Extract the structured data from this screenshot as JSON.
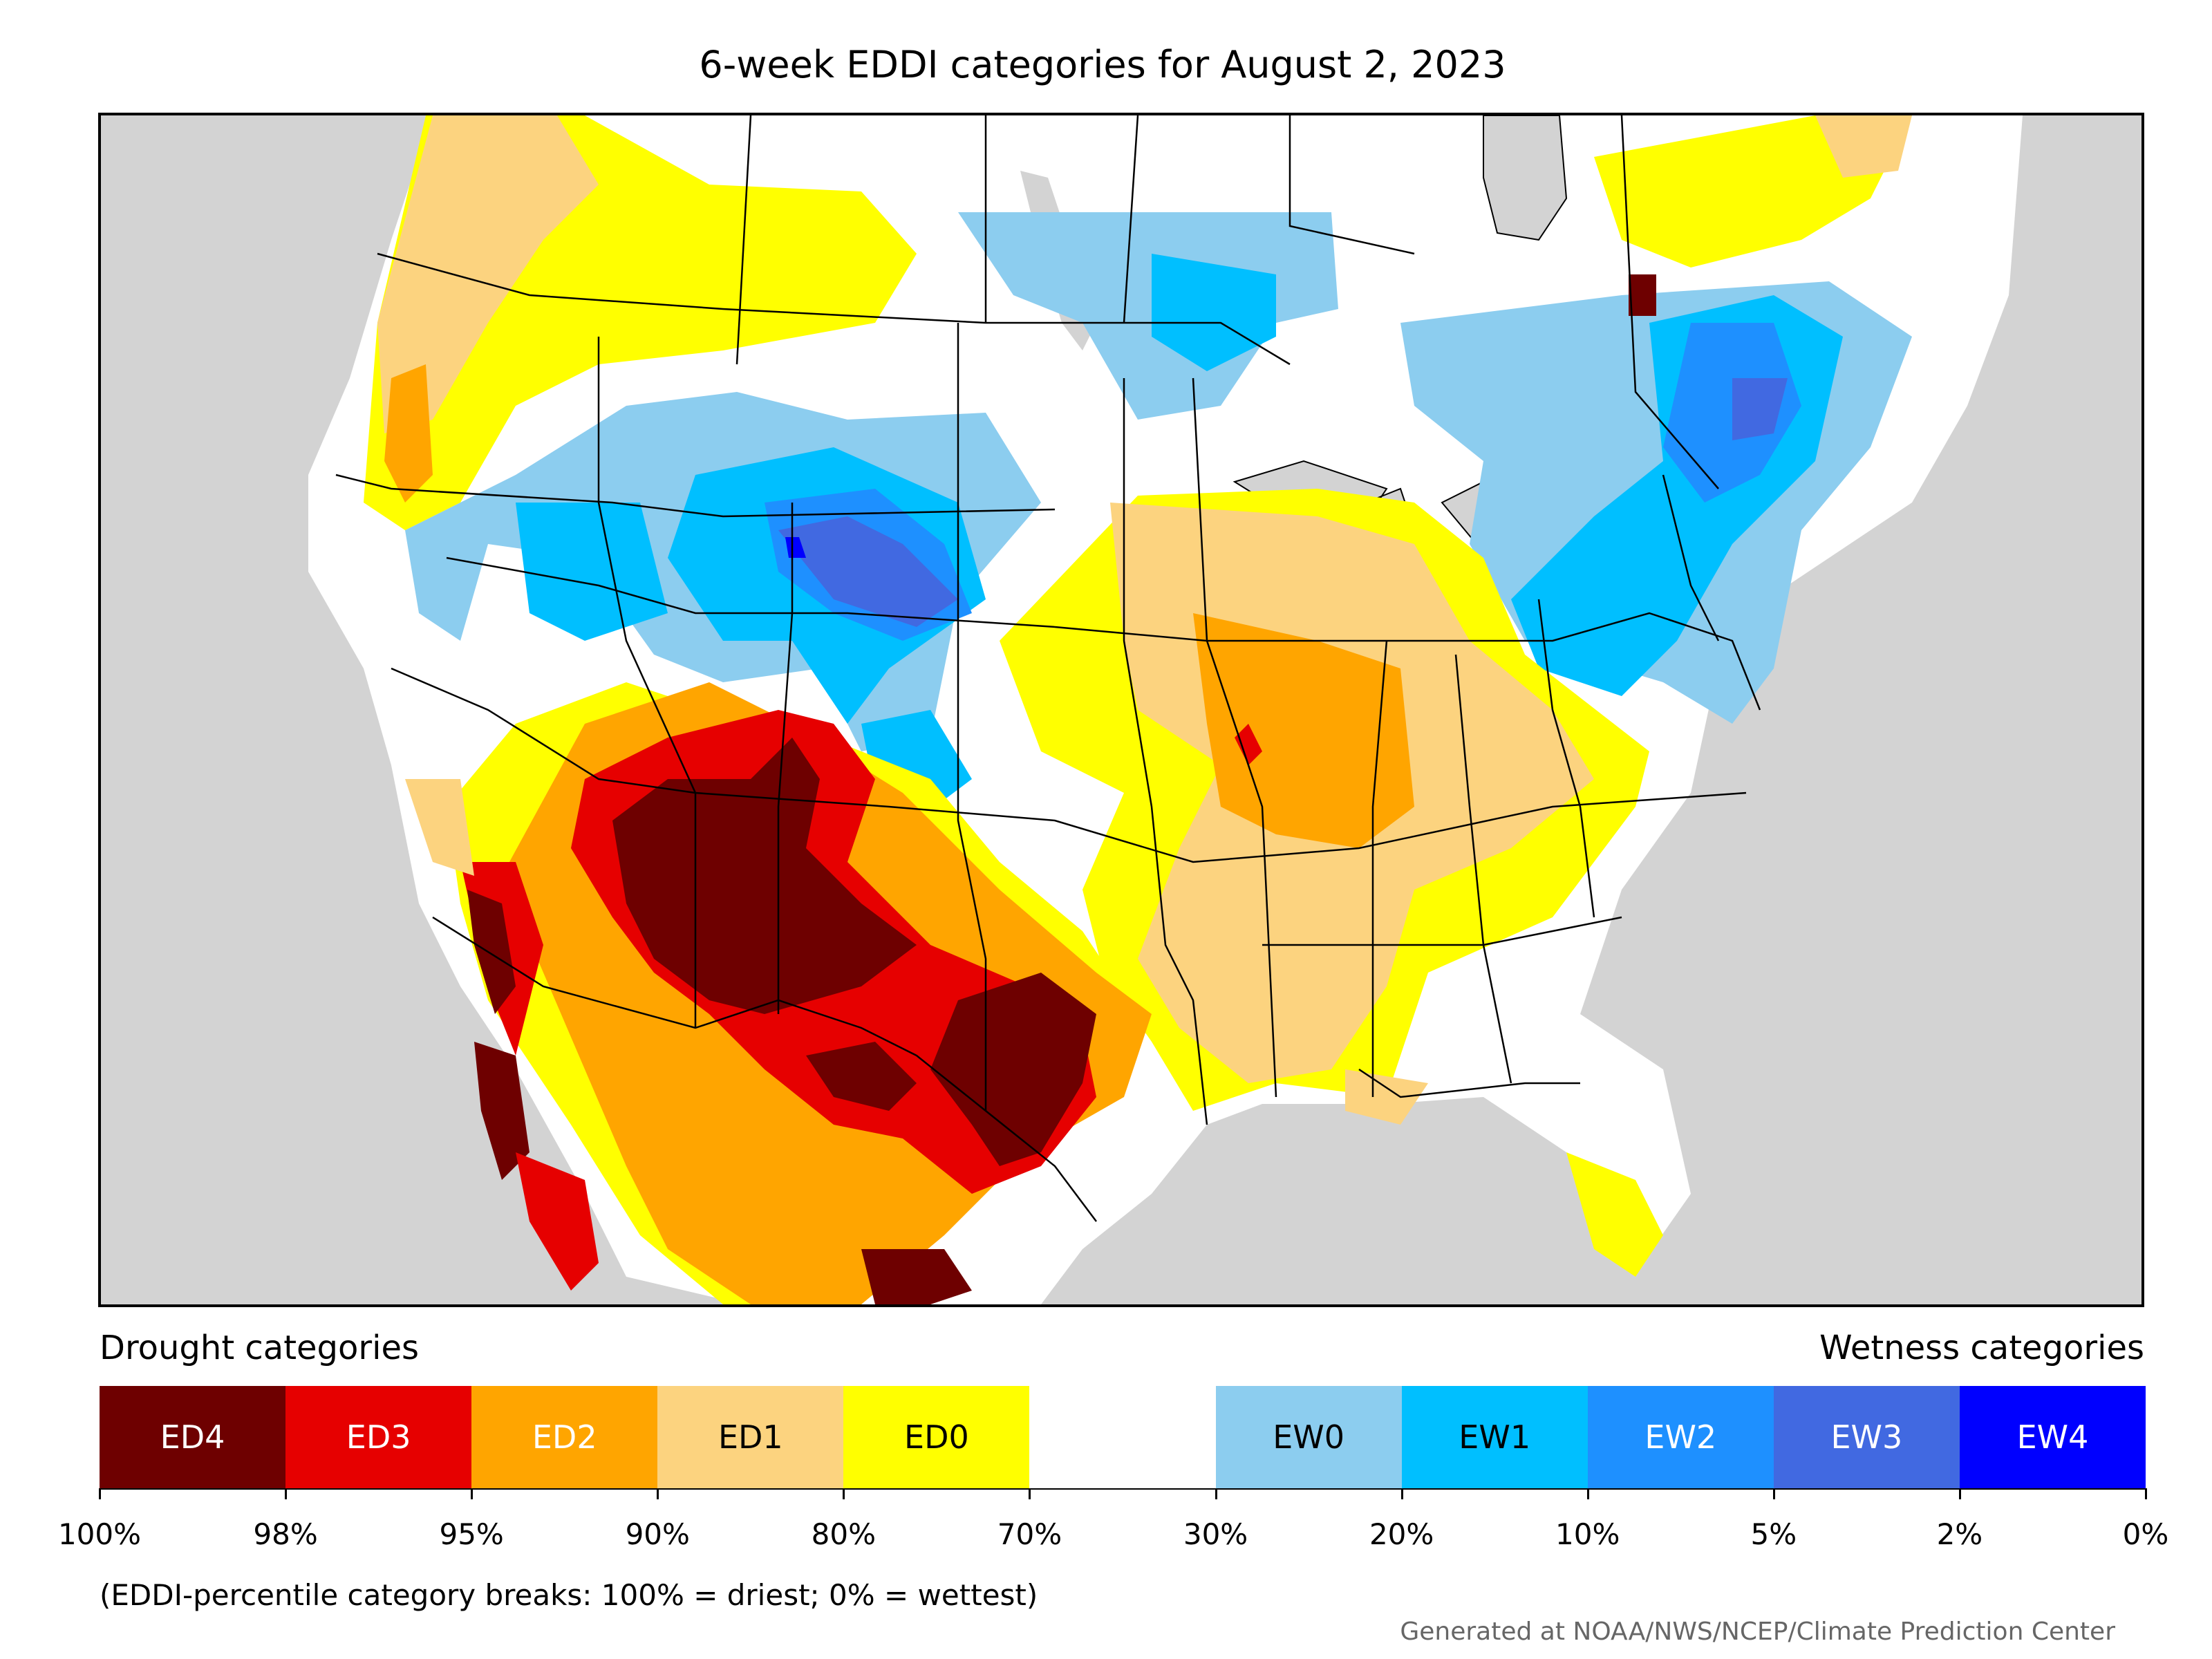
{
  "title": "6-week EDDI categories for August 2, 2023",
  "legend": {
    "drought_heading": "Drought categories",
    "wetness_heading": "Wetness categories",
    "categories": [
      {
        "label": "ED4",
        "color": "#6e0000",
        "text_color": "#ffffff"
      },
      {
        "label": "ED3",
        "color": "#e60000",
        "text_color": "#ffffff"
      },
      {
        "label": "ED2",
        "color": "#ffa500",
        "text_color": "#ffffff"
      },
      {
        "label": "ED1",
        "color": "#fcd37f",
        "text_color": "#000000"
      },
      {
        "label": "ED0",
        "color": "#ffff00",
        "text_color": "#000000"
      },
      {
        "label": "",
        "color": "#ffffff",
        "text_color": "#000000"
      },
      {
        "label": "EW0",
        "color": "#8ccdef",
        "text_color": "#000000"
      },
      {
        "label": "EW1",
        "color": "#00bfff",
        "text_color": "#000000"
      },
      {
        "label": "EW2",
        "color": "#1e90ff",
        "text_color": "#ffffff"
      },
      {
        "label": "EW3",
        "color": "#4169e1",
        "text_color": "#ffffff"
      },
      {
        "label": "EW4",
        "color": "#0000ff",
        "text_color": "#ffffff"
      }
    ],
    "tick_labels": [
      "100%",
      "98%",
      "95%",
      "90%",
      "80%",
      "70%",
      "30%",
      "20%",
      "10%",
      "5%",
      "2%",
      "0%"
    ]
  },
  "footnote": "(EDDI-percentile category breaks: 100% = driest; 0% = wettest)",
  "credit": "Generated at NOAA/NWS/NCEP/Climate Prediction Center",
  "map": {
    "ocean_color": "#d3d3d3",
    "no_data_color": "#ffffff"
  }
}
